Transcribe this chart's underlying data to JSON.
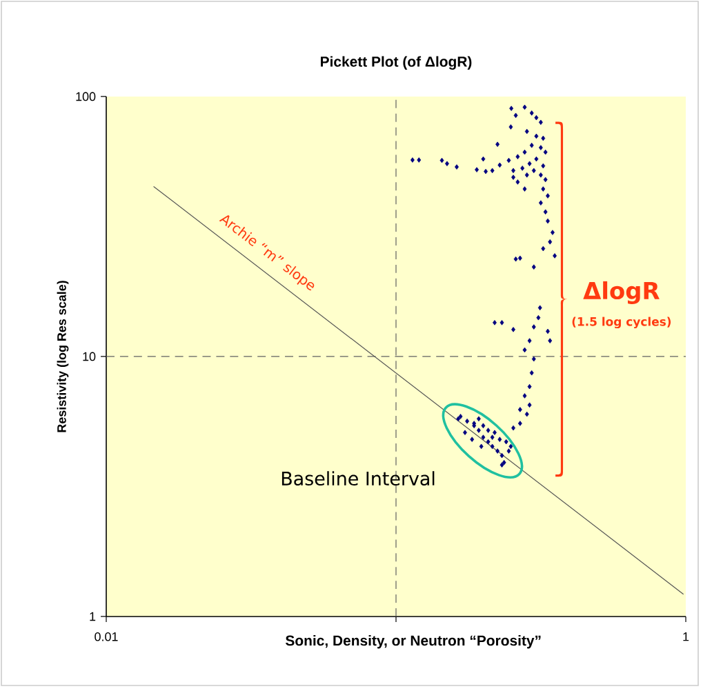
{
  "chart_data": {
    "type": "scatter",
    "title": "Pickett Plot (of ΔlogR)",
    "xlabel": "Sonic, Density, or Neutron “Porosity”",
    "ylabel": "Resistivity (log Res scale)",
    "log": "xy",
    "xlim": [
      0.01,
      1
    ],
    "ylim": [
      1,
      100
    ],
    "xticks": [
      0.01,
      {
        "value": 0.1,
        "label": null
      },
      1
    ],
    "yticks": [
      1,
      10,
      100
    ],
    "marker": "diamond",
    "ref_lines": [
      {
        "axis": "x",
        "value": 0.1,
        "line_style": "dashed",
        "color": "#606060"
      },
      {
        "axis": "y",
        "value": 10,
        "line_style": "dashed",
        "color": "#606060"
      }
    ],
    "annotations": [
      "Archie “m” slope",
      "ΔlogR",
      "(1.5 log cycles)",
      "Baseline Interval"
    ],
    "series": [
      {
        "type": "line",
        "color": "#555555",
        "marker": "none",
        "line_style": "solid",
        "x": [
          0.0146,
          0.98
        ],
        "values": [
          45,
          1.22
        ]
      },
      {
        "color": "#000080",
        "x": [
          0.25,
          0.278,
          0.259,
          0.294,
          0.305,
          0.316,
          0.249,
          0.283,
          0.305,
          0.322,
          0.294,
          0.316,
          0.278,
          0.328,
          0.305,
          0.289,
          0.322,
          0.273,
          0.299,
          0.316,
          0.283,
          0.254,
          0.328,
          0.263,
          0.278,
          0.322,
          0.334,
          0.316,
          0.328,
          0.334,
          0.347,
          0.34,
          0.322,
          0.353,
          0.299,
          0.114,
          0.12,
          0.144,
          0.15,
          0.162,
          0.19,
          0.2,
          0.204,
          0.215,
          0.228,
          0.224,
          0.245,
          0.263,
          0.254,
          0.259,
          0.268,
          0.219,
          0.232,
          0.254,
          0.314,
          0.31,
          0.299,
          0.334,
          0.34,
          0.289,
          0.278,
          0.299,
          0.294,
          0.289,
          0.278,
          0.268,
          0.283,
          0.289,
          0.268,
          0.254,
          0.167,
          0.176,
          0.186,
          0.193,
          0.2,
          0.208,
          0.215,
          0.224,
          0.232,
          0.236,
          0.245,
          0.249,
          0.228,
          0.208,
          0.186,
          0.173,
          0.183,
          0.197,
          0.215,
          0.24,
          0.232,
          0.2,
          0.219,
          0.193,
          0.164
        ],
        "values": [
          90,
          91,
          84.6,
          86.4,
          82.9,
          79.6,
          76.4,
          73.4,
          70.4,
          69.1,
          64.9,
          63.6,
          61.1,
          61.1,
          57.5,
          55.2,
          54.1,
          53,
          51.9,
          49.9,
          49.9,
          48.9,
          47.9,
          46.9,
          44.1,
          44.1,
          41.5,
          39,
          36,
          33.2,
          30,
          27.6,
          26,
          24.4,
          22.1,
          57,
          57,
          56.8,
          55.2,
          53.6,
          52.3,
          57.5,
          51.5,
          51.9,
          54.5,
          65.5,
          56.8,
          58.7,
          51.9,
          23.7,
          23.9,
          13.5,
          13.5,
          12.7,
          15.4,
          14.1,
          13,
          12.5,
          11.5,
          11.5,
          10.6,
          9.78,
          8.65,
          7.66,
          7.06,
          6.25,
          6,
          6.51,
          5.53,
          5.31,
          5.88,
          5.64,
          5.42,
          5.2,
          4.89,
          4.7,
          4.51,
          4.33,
          4.16,
          3.91,
          4.33,
          4.51,
          4.8,
          5.2,
          5.53,
          5.1,
          4.8,
          4.51,
          4.89,
          4.7,
          3.83,
          5.42,
          5.1,
          5.76,
          5.76
        ]
      }
    ]
  }
}
